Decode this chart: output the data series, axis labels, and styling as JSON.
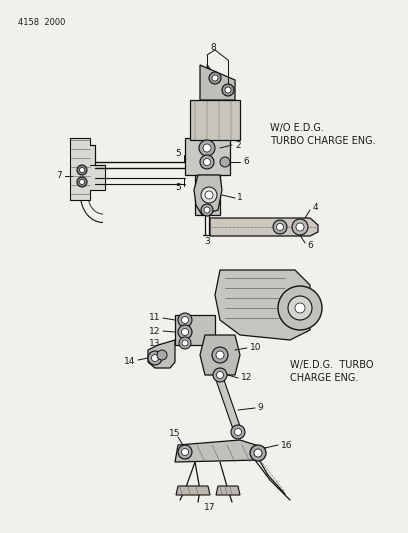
{
  "page_id": "4158  2000",
  "bg_color": "#f0f0ec",
  "text_color": "#1a1a1a",
  "diagram1_label_line1": "W/O E.D.G.",
  "diagram1_label_line2": "TURBO CHARGE ENG.",
  "diagram2_label_line1": "W/E.D.G.  TURBO",
  "diagram2_label_line2": "CHARGE ENG.",
  "lc": "#111111",
  "lw": 0.7,
  "font_size": 6.5
}
